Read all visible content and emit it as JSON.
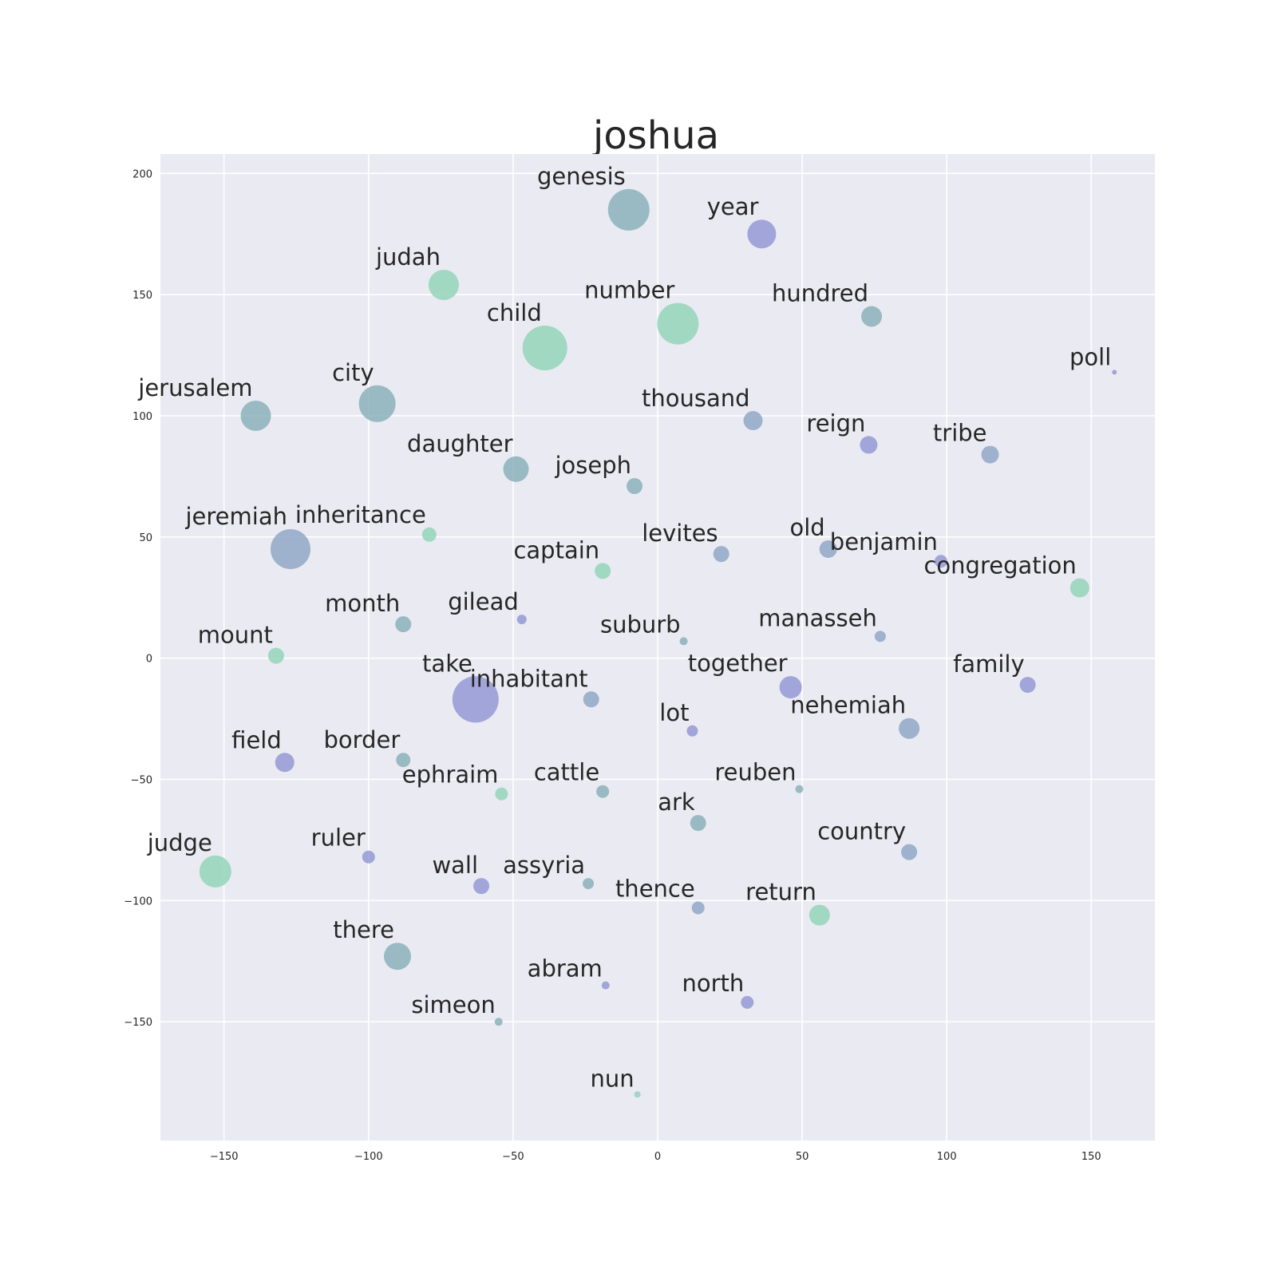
{
  "chart_data": {
    "type": "scatter",
    "title": "joshua",
    "xlabel": "",
    "ylabel": "",
    "xlim": [
      -172,
      172
    ],
    "ylim": [
      -199,
      208
    ],
    "x_ticks": [
      -150,
      -100,
      -50,
      0,
      50,
      100,
      150
    ],
    "y_ticks": [
      -150,
      -100,
      -50,
      0,
      50,
      100,
      150,
      200
    ],
    "x_tick_labels": [
      "−150",
      "−100",
      "−50",
      "0",
      "50",
      "100",
      "150"
    ],
    "y_tick_labels": [
      "−150",
      "−100",
      "−50",
      "0",
      "50",
      "100",
      "150",
      "200"
    ],
    "grid": true,
    "colors": {
      "background": "#eaeaf2",
      "grid": "#ffffff",
      "green": "#8dd3b4",
      "teal": "#84aeb6",
      "steel": "#8ba3c3",
      "purple": "#8f94d2"
    },
    "points": [
      {
        "label": "genesis",
        "x": -10,
        "y": 185,
        "size": 26,
        "color": "teal"
      },
      {
        "label": "year",
        "x": 36,
        "y": 175,
        "size": 18,
        "color": "purple"
      },
      {
        "label": "judah",
        "x": -74,
        "y": 154,
        "size": 19,
        "color": "green"
      },
      {
        "label": "number",
        "x": 7,
        "y": 138,
        "size": 26,
        "color": "green"
      },
      {
        "label": "hundred",
        "x": 74,
        "y": 141,
        "size": 13,
        "color": "teal"
      },
      {
        "label": "child",
        "x": -39,
        "y": 128,
        "size": 28,
        "color": "green"
      },
      {
        "label": "poll",
        "x": 158,
        "y": 118,
        "size": 3,
        "color": "purple"
      },
      {
        "label": "jerusalem",
        "x": -139,
        "y": 100,
        "size": 19,
        "color": "teal"
      },
      {
        "label": "city",
        "x": -97,
        "y": 105,
        "size": 23,
        "color": "teal"
      },
      {
        "label": "thousand",
        "x": 33,
        "y": 98,
        "size": 12,
        "color": "steel"
      },
      {
        "label": "reign",
        "x": 73,
        "y": 88,
        "size": 11,
        "color": "purple"
      },
      {
        "label": "tribe",
        "x": 115,
        "y": 84,
        "size": 11,
        "color": "steel"
      },
      {
        "label": "daughter",
        "x": -49,
        "y": 78,
        "size": 16,
        "color": "teal"
      },
      {
        "label": "joseph",
        "x": -8,
        "y": 71,
        "size": 10,
        "color": "teal"
      },
      {
        "label": "inheritance",
        "x": -79,
        "y": 51,
        "size": 9,
        "color": "green"
      },
      {
        "label": "jeremiah",
        "x": -127,
        "y": 45,
        "size": 25,
        "color": "steel"
      },
      {
        "label": "levites",
        "x": 22,
        "y": 43,
        "size": 10,
        "color": "steel"
      },
      {
        "label": "old",
        "x": 59,
        "y": 45,
        "size": 11,
        "color": "steel"
      },
      {
        "label": "benjamin",
        "x": 98,
        "y": 40,
        "size": 8,
        "color": "purple"
      },
      {
        "label": "captain",
        "x": -19,
        "y": 36,
        "size": 10,
        "color": "green"
      },
      {
        "label": "congregation",
        "x": 146,
        "y": 29,
        "size": 12,
        "color": "green"
      },
      {
        "label": "month",
        "x": -88,
        "y": 14,
        "size": 10,
        "color": "teal"
      },
      {
        "label": "gilead",
        "x": -47,
        "y": 16,
        "size": 6,
        "color": "purple"
      },
      {
        "label": "suburb",
        "x": 9,
        "y": 7,
        "size": 5,
        "color": "teal"
      },
      {
        "label": "manasseh",
        "x": 77,
        "y": 9,
        "size": 7,
        "color": "steel"
      },
      {
        "label": "mount",
        "x": -132,
        "y": 1,
        "size": 10,
        "color": "green"
      },
      {
        "label": "take",
        "x": -63,
        "y": -17,
        "size": 29,
        "color": "purple"
      },
      {
        "label": "inhabitant",
        "x": -23,
        "y": -17,
        "size": 10,
        "color": "steel"
      },
      {
        "label": "together",
        "x": 46,
        "y": -12,
        "size": 14,
        "color": "purple"
      },
      {
        "label": "family",
        "x": 128,
        "y": -11,
        "size": 10,
        "color": "purple"
      },
      {
        "label": "lot",
        "x": 12,
        "y": -30,
        "size": 7,
        "color": "purple"
      },
      {
        "label": "nehemiah",
        "x": 87,
        "y": -29,
        "size": 13,
        "color": "steel"
      },
      {
        "label": "field",
        "x": -129,
        "y": -43,
        "size": 12,
        "color": "purple"
      },
      {
        "label": "border",
        "x": -88,
        "y": -42,
        "size": 9,
        "color": "teal"
      },
      {
        "label": "ephraim",
        "x": -54,
        "y": -56,
        "size": 8,
        "color": "green"
      },
      {
        "label": "cattle",
        "x": -19,
        "y": -55,
        "size": 8,
        "color": "teal"
      },
      {
        "label": "reuben",
        "x": 49,
        "y": -54,
        "size": 5,
        "color": "teal"
      },
      {
        "label": "ark",
        "x": 14,
        "y": -68,
        "size": 10,
        "color": "teal"
      },
      {
        "label": "country",
        "x": 87,
        "y": -80,
        "size": 10,
        "color": "steel"
      },
      {
        "label": "judge",
        "x": -153,
        "y": -88,
        "size": 20,
        "color": "green"
      },
      {
        "label": "ruler",
        "x": -100,
        "y": -82,
        "size": 8,
        "color": "purple"
      },
      {
        "label": "wall",
        "x": -61,
        "y": -94,
        "size": 10,
        "color": "purple"
      },
      {
        "label": "assyria",
        "x": -24,
        "y": -93,
        "size": 7,
        "color": "teal"
      },
      {
        "label": "thence",
        "x": 14,
        "y": -103,
        "size": 8,
        "color": "steel"
      },
      {
        "label": "return",
        "x": 56,
        "y": -106,
        "size": 13,
        "color": "green"
      },
      {
        "label": "there",
        "x": -90,
        "y": -123,
        "size": 17,
        "color": "teal"
      },
      {
        "label": "abram",
        "x": -18,
        "y": -135,
        "size": 5,
        "color": "purple"
      },
      {
        "label": "north",
        "x": 31,
        "y": -142,
        "size": 8,
        "color": "purple"
      },
      {
        "label": "simeon",
        "x": -55,
        "y": -150,
        "size": 5,
        "color": "teal"
      },
      {
        "label": "nun",
        "x": -7,
        "y": -180,
        "size": 4,
        "color": "green"
      }
    ]
  }
}
